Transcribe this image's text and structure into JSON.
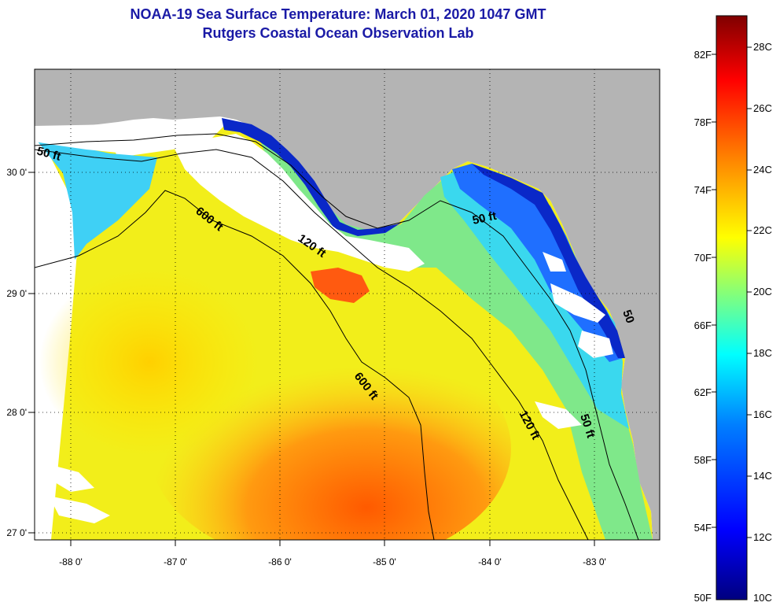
{
  "title": "NOAA-19 Sea Surface Temperature:  March 01, 2020 1047 GMT",
  "subtitle": "Rutgers Coastal Ocean Observation Lab",
  "x_ticks": [
    "-88 0'",
    "-87 0'",
    "-86 0'",
    "-85 0'",
    "-84 0'",
    "-83 0'"
  ],
  "y_ticks": [
    "30 0'",
    "29 0'",
    "28 0'",
    "27 0'"
  ],
  "contour_labels": [
    "50 ft",
    "600 ft",
    "120 ft",
    "50 ft",
    "600 ft",
    "120 ft",
    "50 ft",
    "50"
  ],
  "colorbar": {
    "f_labels": [
      "82F",
      "78F",
      "74F",
      "70F",
      "66F",
      "62F",
      "58F",
      "54F",
      "50F"
    ],
    "c_labels": [
      "28C",
      "26C",
      "24C",
      "22C",
      "20C",
      "18C",
      "16C",
      "14C",
      "12C",
      "10C"
    ],
    "range_c": [
      10,
      29
    ],
    "colors": [
      "#00007f",
      "#0000ff",
      "#007fff",
      "#00ffff",
      "#7fff7f",
      "#ffff00",
      "#ff7f00",
      "#ff0000",
      "#7f0000"
    ]
  },
  "map": {
    "lon_range": [
      -88.35,
      -82.45
    ],
    "lat_range": [
      26.97,
      30.85
    ],
    "land_color": "#b4b4b4",
    "cloud_color": "#ffffff"
  }
}
